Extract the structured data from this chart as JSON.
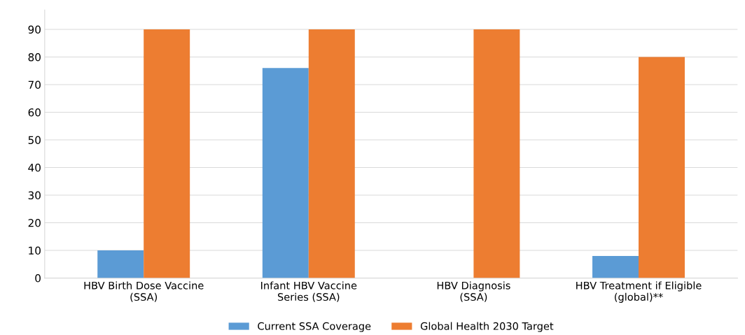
{
  "chart_data": {
    "type": "bar",
    "categories": [
      "HBV Birth Dose Vaccine\n(SSA)",
      "Infant HBV Vaccine\nSeries (SSA)",
      "HBV Diagnosis\n(SSA)",
      "HBV Treatment if Eligible\n(global)**"
    ],
    "series": [
      {
        "name": "Current SSA Coverage",
        "color": "#5b9bd5",
        "values": [
          10,
          76,
          0,
          8
        ]
      },
      {
        "name": "Global Health 2030 Target",
        "color": "#ed7d31",
        "values": [
          90,
          90,
          90,
          80
        ]
      }
    ],
    "ylim": [
      0,
      97
    ],
    "yticks": [
      0,
      10,
      20,
      30,
      40,
      50,
      60,
      70,
      80,
      90
    ],
    "grid": "y",
    "legend": "bottom"
  }
}
